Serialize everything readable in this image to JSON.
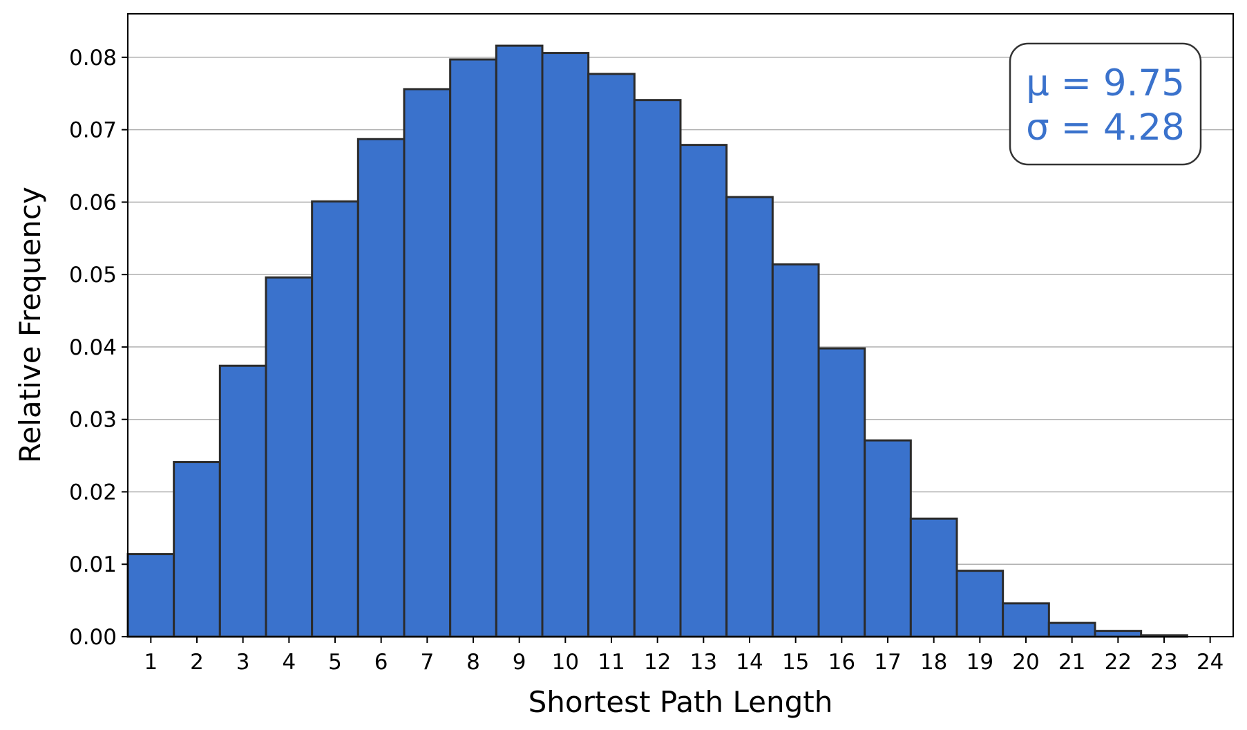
{
  "chart_data": {
    "type": "bar",
    "categories": [
      "1",
      "2",
      "3",
      "4",
      "5",
      "6",
      "7",
      "8",
      "9",
      "10",
      "11",
      "12",
      "13",
      "14",
      "15",
      "16",
      "17",
      "18",
      "19",
      "20",
      "21",
      "22",
      "23",
      "24"
    ],
    "values": [
      0.0114,
      0.0241,
      0.0374,
      0.0496,
      0.0601,
      0.0687,
      0.0756,
      0.0797,
      0.0816,
      0.0806,
      0.0777,
      0.0741,
      0.0679,
      0.0607,
      0.0514,
      0.0398,
      0.0271,
      0.0163,
      0.0091,
      0.0046,
      0.0019,
      0.0008,
      0.0002,
      0.0
    ],
    "title": "",
    "xlabel": "Shortest Path Length",
    "ylabel": "Relative Frequency",
    "ylim": [
      0,
      0.086
    ],
    "yticks": [
      "0.00",
      "0.01",
      "0.02",
      "0.03",
      "0.04",
      "0.05",
      "0.06",
      "0.07",
      "0.08"
    ],
    "grid": "horizontal",
    "bar_color": "#3a72cc",
    "edge_color": "#2b2b2b",
    "annotation": {
      "placement": "top-right",
      "mu_text": "μ = 9.75",
      "sigma_text": "σ = 4.28",
      "color": "#3a72cc"
    }
  }
}
